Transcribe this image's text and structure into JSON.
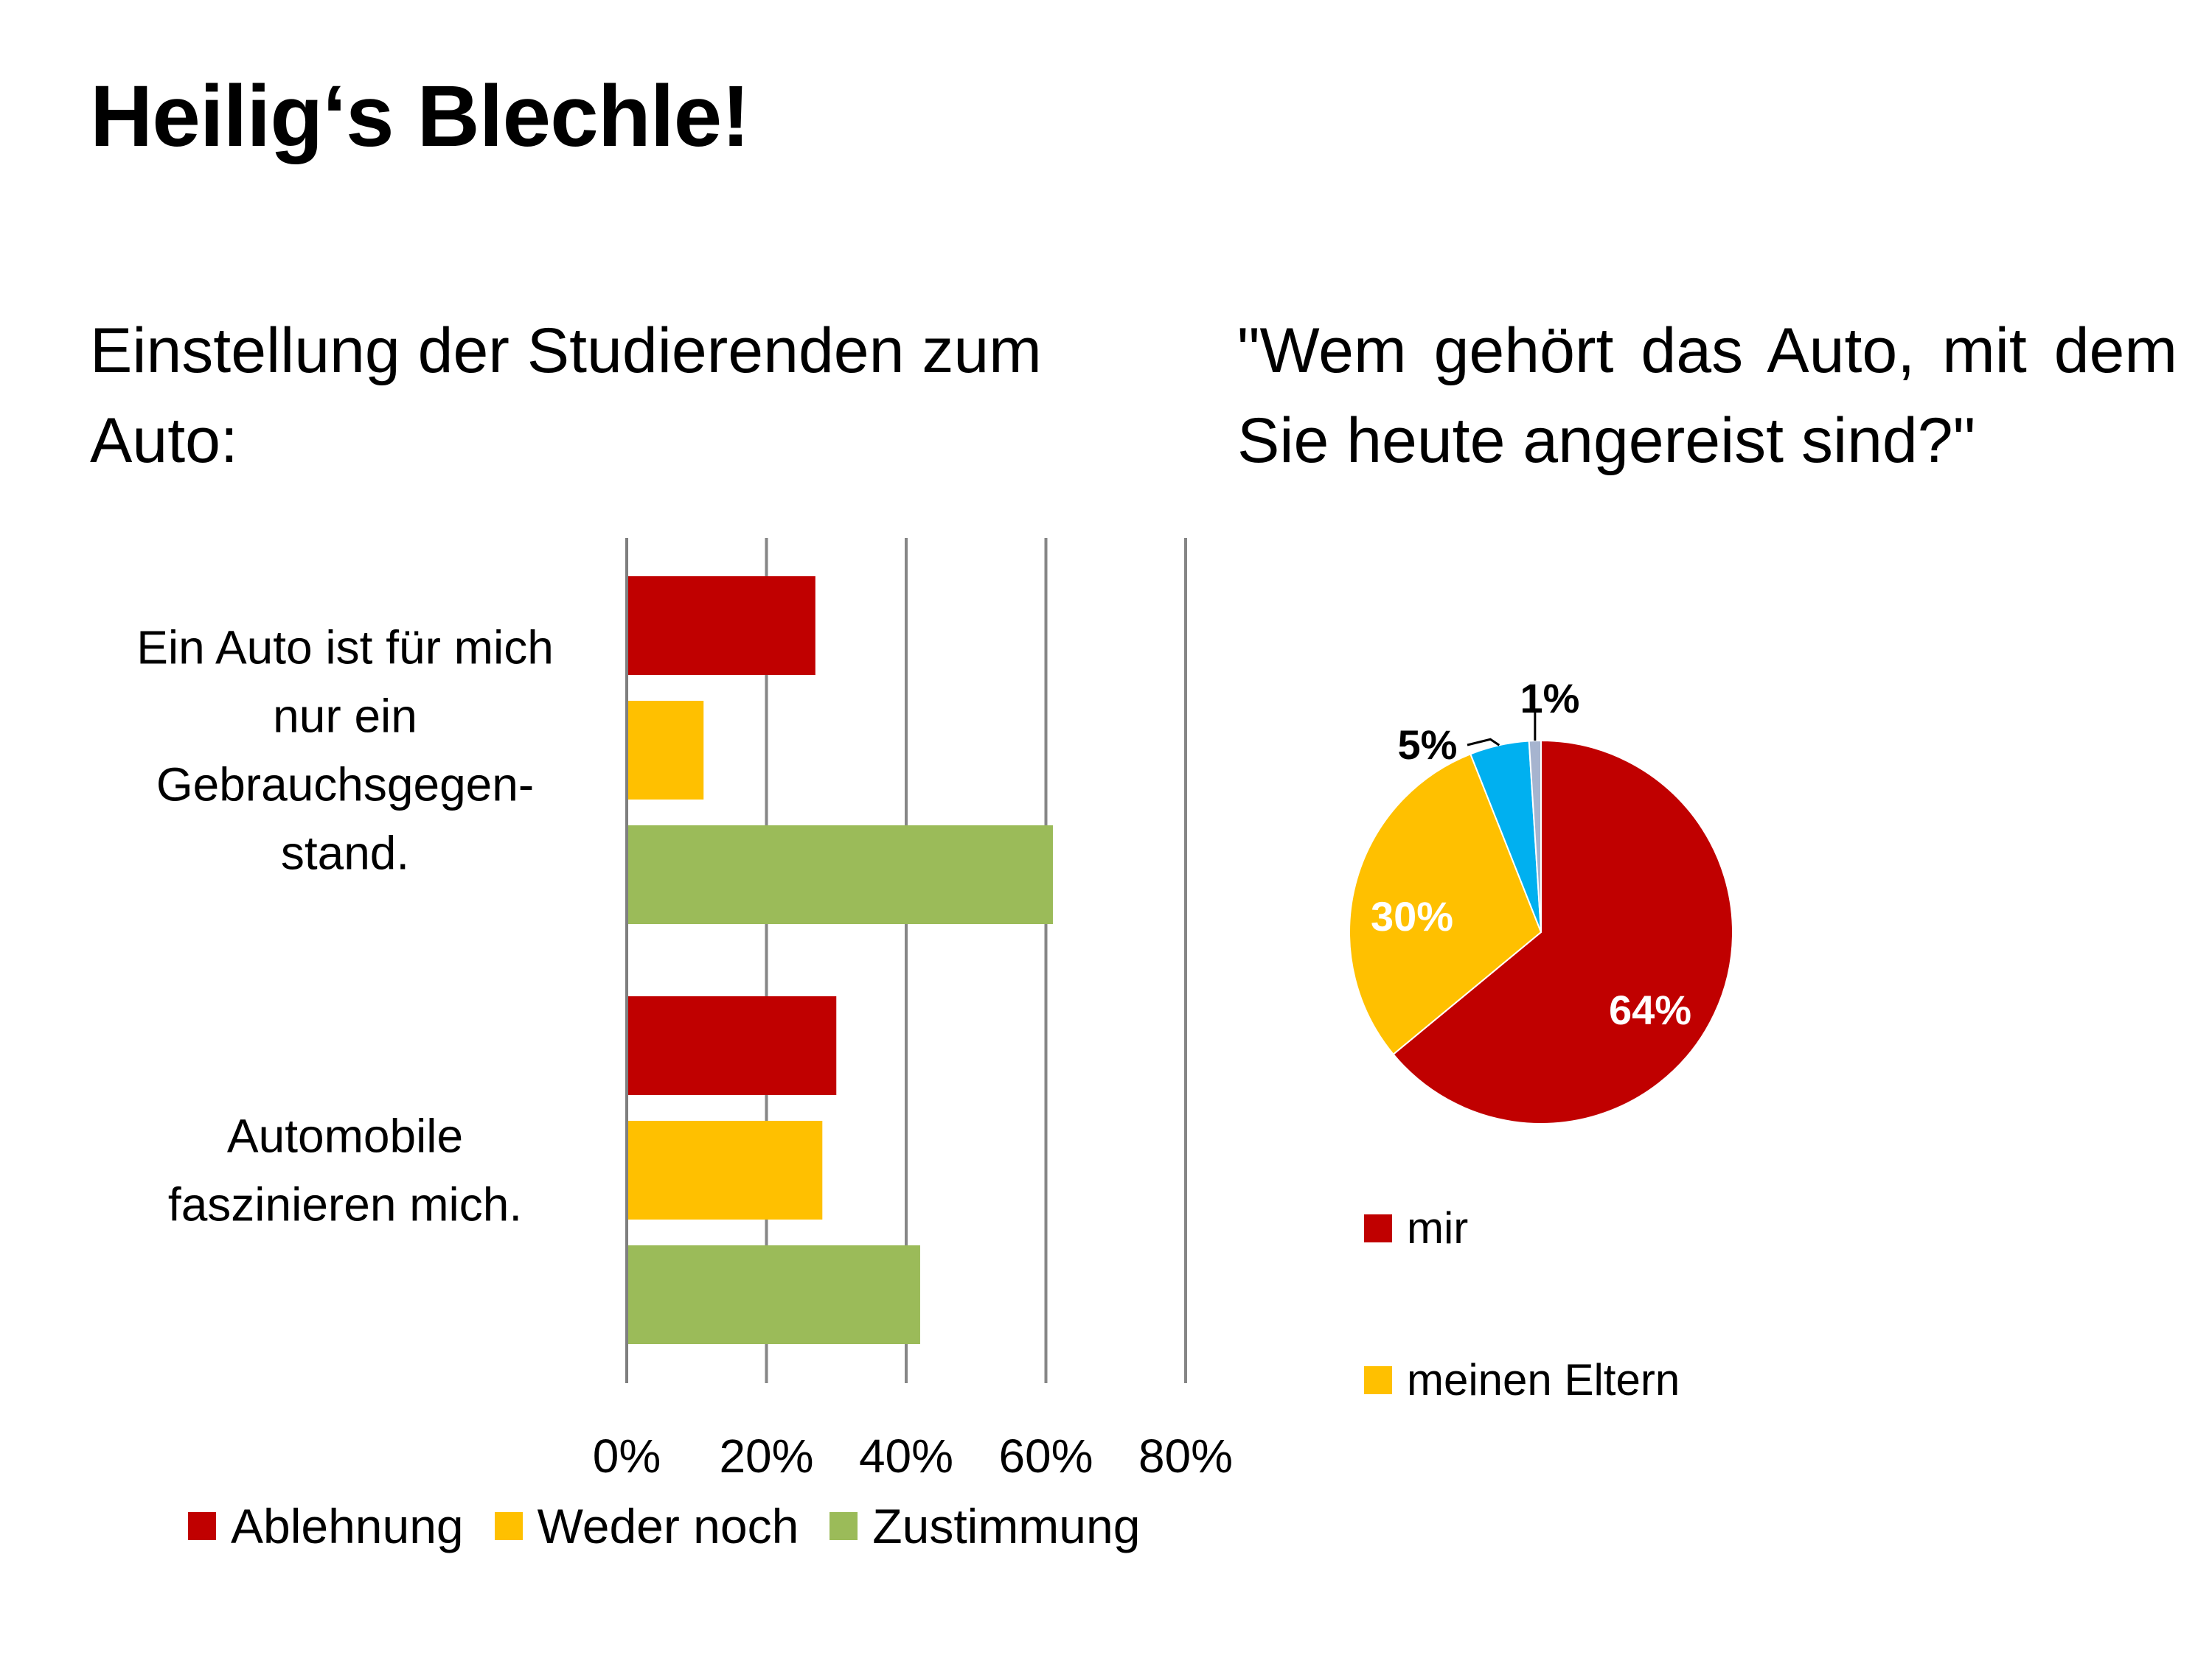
{
  "slide": {
    "title": "Heilig‘s Blechle!",
    "subtitle_left": "Einstellung der Studierenden zum Auto:",
    "subtitle_right": "\"Wem gehört das Auto, mit dem Sie heute angereist sind?\""
  },
  "chart_data": [
    {
      "type": "bar",
      "orientation": "horizontal",
      "categories": [
        [
          "Ein Auto ist für mich",
          "nur ein",
          "Gebrauchsgegen-",
          "stand."
        ],
        [
          "Automobile",
          "faszinieren mich."
        ]
      ],
      "series": [
        {
          "name": "Ablehnung",
          "values": [
            27,
            30
          ],
          "color": "#C00000"
        },
        {
          "name": "Weder noch",
          "values": [
            11,
            28
          ],
          "color": "#FFC000"
        },
        {
          "name": "Zustimmung",
          "values": [
            61,
            42
          ],
          "color": "#9BBB59"
        }
      ],
      "xlim": [
        0,
        80
      ],
      "xticks": [
        "0%",
        "20%",
        "40%",
        "60%",
        "80%"
      ],
      "grid": true,
      "legend_position": "bottom"
    },
    {
      "type": "pie",
      "slices": [
        {
          "name": "mir",
          "value": 64,
          "label": "64%",
          "color": "#C00000",
          "label_color": "#FFFFFF",
          "in_legend": true
        },
        {
          "name": "meinen Eltern",
          "value": 30,
          "label": "30%",
          "color": "#FFC000",
          "label_color": "#FFFFFF",
          "in_legend": true
        },
        {
          "value": 5,
          "label": "5%",
          "color": "#00B0F0",
          "label_color": "#000000",
          "in_legend": false
        },
        {
          "value": 1,
          "label": "1%",
          "color": "#A6B4CF",
          "label_color": "#000000",
          "in_legend": false
        }
      ],
      "legend_position": "bottom"
    }
  ]
}
